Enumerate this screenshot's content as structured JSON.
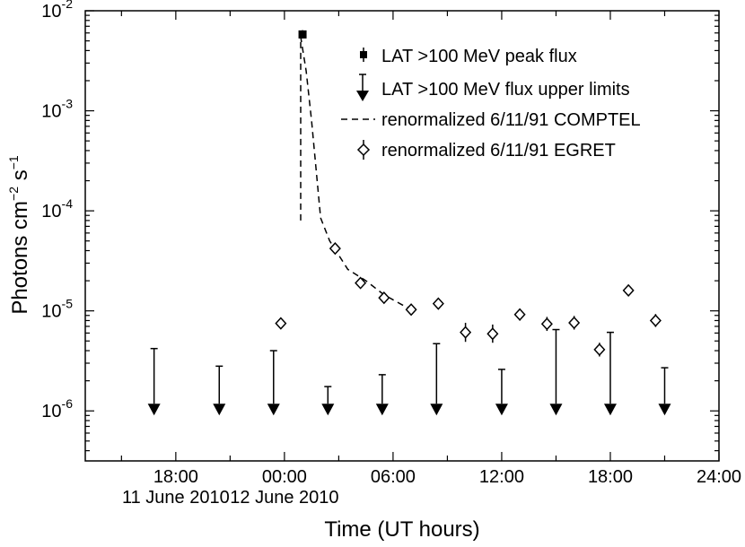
{
  "chart_data": {
    "type": "scatter",
    "title": "",
    "xlabel": "Time (UT hours)",
    "ylabel_parts": {
      "prefix": "Photons cm",
      "exp1": "−2",
      "mid": " s",
      "exp2": "−1"
    },
    "x_units": "hours since 00:00 UT 12 June 2010",
    "xlim": [
      -11,
      24
    ],
    "ylim_log10": [
      -6.5,
      -2
    ],
    "x_ticks": [
      {
        "x": -6,
        "label": "18:00",
        "sublabel": "11 June 2010"
      },
      {
        "x": 0,
        "label": "00:00",
        "sublabel": "12 June 2010"
      },
      {
        "x": 6,
        "label": "06:00",
        "sublabel": ""
      },
      {
        "x": 12,
        "label": "12:00",
        "sublabel": ""
      },
      {
        "x": 18,
        "label": "18:00",
        "sublabel": ""
      },
      {
        "x": 24,
        "label": "24:00",
        "sublabel": ""
      }
    ],
    "y_ticks": [
      {
        "exp": -6,
        "label_base": "10",
        "label_exp": "-6"
      },
      {
        "exp": -5,
        "label_base": "10",
        "label_exp": "-5"
      },
      {
        "exp": -4,
        "label_base": "10",
        "label_exp": "-4"
      },
      {
        "exp": -3,
        "label_base": "10",
        "label_exp": "-3"
      },
      {
        "exp": -2,
        "label_base": "10",
        "label_exp": "-2"
      }
    ],
    "legend_position": "top-right",
    "series": [
      {
        "name": "LAT >100 MeV peak flux",
        "kind": "square",
        "points": [
          {
            "x": 1.0,
            "y": 0.0058,
            "err_lo": 0.0053,
            "err_hi": 0.0064
          }
        ]
      },
      {
        "name": "LAT >100 MeV flux upper limits",
        "kind": "upper-limit",
        "points": [
          {
            "x": -7.2,
            "y": 4.2e-06
          },
          {
            "x": -3.6,
            "y": 2.8e-06
          },
          {
            "x": -0.6,
            "y": 4e-06
          },
          {
            "x": 2.4,
            "y": 1.75e-06
          },
          {
            "x": 5.4,
            "y": 2.3e-06
          },
          {
            "x": 8.4,
            "y": 4.7e-06
          },
          {
            "x": 12.0,
            "y": 2.6e-06
          },
          {
            "x": 15.0,
            "y": 6.5e-06
          },
          {
            "x": 18.0,
            "y": 6.1e-06
          },
          {
            "x": 21.0,
            "y": 2.7e-06
          }
        ]
      },
      {
        "name": "renormalized 6/11/91 COMPTEL",
        "kind": "dashed-line",
        "points": [
          {
            "x": 0.9,
            "y": 8e-05
          },
          {
            "x": 0.9,
            "y": 0.0055
          },
          {
            "x": 1.2,
            "y": 0.0025
          },
          {
            "x": 1.5,
            "y": 0.0008
          },
          {
            "x": 2.0,
            "y": 8.5e-05
          },
          {
            "x": 2.5,
            "y": 5e-05
          },
          {
            "x": 3.5,
            "y": 2.6e-05
          },
          {
            "x": 4.5,
            "y": 2e-05
          },
          {
            "x": 5.5,
            "y": 1.45e-05
          },
          {
            "x": 6.5,
            "y": 1.15e-05
          },
          {
            "x": 7.0,
            "y": 1.05e-05
          }
        ]
      },
      {
        "name": "renormalized 6/11/91 EGRET",
        "kind": "diamond",
        "points": [
          {
            "x": -0.2,
            "y": 7.5e-06,
            "err_lo": 6.7e-06,
            "err_hi": 8.5e-06
          },
          {
            "x": 2.8,
            "y": 4.2e-05,
            "err_lo": 3.8e-05,
            "err_hi": 4.7e-05
          },
          {
            "x": 4.2,
            "y": 1.9e-05,
            "err_lo": 1.75e-05,
            "err_hi": 2.1e-05
          },
          {
            "x": 5.5,
            "y": 1.35e-05,
            "err_lo": 1.22e-05,
            "err_hi": 1.5e-05
          },
          {
            "x": 7.0,
            "y": 1.03e-05,
            "err_lo": 9.2e-06,
            "err_hi": 1.15e-05
          },
          {
            "x": 8.5,
            "y": 1.18e-05,
            "err_lo": 1.05e-05,
            "err_hi": 1.33e-05
          },
          {
            "x": 10.0,
            "y": 6.1e-06,
            "err_lo": 4.9e-06,
            "err_hi": 7.6e-06
          },
          {
            "x": 11.5,
            "y": 5.9e-06,
            "err_lo": 4.8e-06,
            "err_hi": 7.3e-06
          },
          {
            "x": 13.0,
            "y": 9.2e-06,
            "err_lo": 8e-06,
            "err_hi": 1.05e-05
          },
          {
            "x": 14.5,
            "y": 7.4e-06,
            "err_lo": 6.3e-06,
            "err_hi": 8.7e-06
          },
          {
            "x": 16.0,
            "y": 7.6e-06,
            "err_lo": 6.5e-06,
            "err_hi": 8.9e-06
          },
          {
            "x": 17.4,
            "y": 4.1e-06,
            "err_lo": 3.5e-06,
            "err_hi": 4.8e-06
          },
          {
            "x": 19.0,
            "y": 1.6e-05,
            "err_lo": 1.45e-05,
            "err_hi": 1.78e-05
          },
          {
            "x": 20.5,
            "y": 8e-06,
            "err_lo": 6.9e-06,
            "err_hi": 9.3e-06
          }
        ]
      }
    ]
  }
}
